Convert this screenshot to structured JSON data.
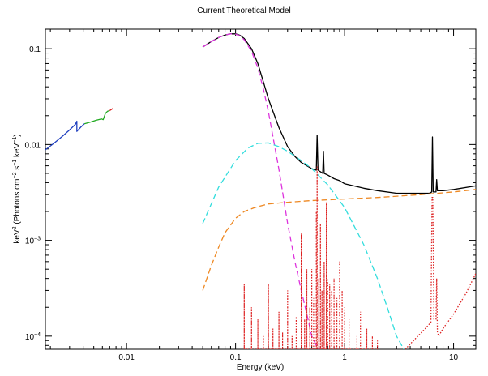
{
  "chart_data": {
    "type": "line",
    "title": "Current Theoretical Model",
    "xlabel": "Energy (keV)",
    "ylabel_parts": {
      "a": "keV",
      "sup1": "2",
      "b": " (Photons cm",
      "sup2": "−2",
      "c": " s",
      "sup3": "−1",
      "d": " keV",
      "sup4": "−1",
      "e": ")"
    },
    "x_scale": "log",
    "y_scale": "log",
    "xlim": [
      0.0018,
      16
    ],
    "ylim": [
      7.3e-05,
      0.16
    ],
    "x_ticks": [
      {
        "value": 0.01,
        "label": "0.01"
      },
      {
        "value": 0.1,
        "label": "0.1"
      },
      {
        "value": 1,
        "label": "1"
      },
      {
        "value": 10,
        "label": "10"
      }
    ],
    "y_ticks": [
      {
        "value": 0.0001,
        "base": "10",
        "exp": "−4"
      },
      {
        "value": 0.001,
        "base": "10",
        "exp": "−3"
      },
      {
        "value": 0.01,
        "base": "0.01",
        "exp": ""
      },
      {
        "value": 0.1,
        "base": "0.1",
        "exp": ""
      }
    ],
    "grid": false,
    "legend": "none",
    "series": [
      {
        "style": "solid",
        "color": "#1f3fbf",
        "x": [
          0.0018,
          0.0022,
          0.0026,
          0.003,
          0.0034,
          0.0035,
          0.0035,
          0.0038,
          0.0041
        ],
        "y": [
          0.0088,
          0.0105,
          0.0123,
          0.0142,
          0.0163,
          0.0175,
          0.0137,
          0.0152,
          0.0165
        ]
      },
      {
        "style": "solid",
        "color": "#22aa22",
        "x": [
          0.0041,
          0.0047,
          0.0053,
          0.0059,
          0.0061,
          0.0064,
          0.0067,
          0.007
        ],
        "y": [
          0.0165,
          0.0172,
          0.018,
          0.0185,
          0.0182,
          0.0212,
          0.0223,
          0.0226
        ]
      },
      {
        "style": "solid",
        "color": "#dd2222",
        "x": [
          0.007,
          0.0075
        ],
        "y": [
          0.0226,
          0.0238
        ]
      },
      {
        "style": "solid",
        "color": "#000000",
        "x": [
          0.05,
          0.06,
          0.07,
          0.08,
          0.09,
          0.1,
          0.11,
          0.12,
          0.14,
          0.16,
          0.18,
          0.2,
          0.25,
          0.3,
          0.35,
          0.4,
          0.5,
          0.55,
          0.56,
          0.57,
          0.6,
          0.63,
          0.64,
          0.65,
          0.7,
          0.8,
          0.9,
          1.0,
          1.5,
          2.0,
          3.0,
          4.0,
          5.0,
          6.0,
          6.3,
          6.4,
          6.5,
          6.6,
          6.9,
          7.0,
          7.1,
          8.0,
          10,
          16
        ],
        "y": [
          0.104,
          0.119,
          0.131,
          0.139,
          0.143,
          0.143,
          0.138,
          0.128,
          0.1,
          0.07,
          0.045,
          0.03,
          0.015,
          0.0095,
          0.0075,
          0.0065,
          0.0056,
          0.0054,
          0.0125,
          0.0054,
          0.0052,
          0.005,
          0.0085,
          0.005,
          0.0048,
          0.0044,
          0.0042,
          0.0039,
          0.0035,
          0.0033,
          0.0031,
          0.0031,
          0.0031,
          0.0031,
          0.0032,
          0.012,
          0.0032,
          0.0032,
          0.0032,
          0.0043,
          0.0033,
          0.0033,
          0.0034,
          0.0037
        ]
      },
      {
        "style": "dashed",
        "color": "#dd33dd",
        "x": [
          0.05,
          0.06,
          0.07,
          0.08,
          0.09,
          0.1,
          0.11,
          0.12,
          0.14,
          0.16,
          0.18,
          0.2,
          0.25,
          0.3,
          0.35,
          0.4,
          0.45,
          0.5,
          0.55,
          0.6
        ],
        "y": [
          0.104,
          0.119,
          0.131,
          0.139,
          0.143,
          0.142,
          0.136,
          0.124,
          0.094,
          0.063,
          0.038,
          0.022,
          0.0055,
          0.0015,
          0.0006,
          0.0003,
          0.00017,
          0.0001,
          8e-05,
          7.3e-05
        ]
      },
      {
        "style": "dashed",
        "color": "#33dddd",
        "x": [
          0.05,
          0.07,
          0.1,
          0.13,
          0.16,
          0.2,
          0.25,
          0.3,
          0.4,
          0.5,
          0.7,
          1.0,
          1.5,
          2.0,
          2.5,
          3.0,
          3.5
        ],
        "y": [
          0.0015,
          0.0036,
          0.0068,
          0.0092,
          0.0103,
          0.0104,
          0.0095,
          0.0085,
          0.0068,
          0.0056,
          0.0038,
          0.0022,
          0.0009,
          0.0004,
          0.00019,
          0.0001,
          7.3e-05
        ]
      },
      {
        "style": "dashed",
        "color": "#ee8822",
        "x": [
          0.05,
          0.06,
          0.07,
          0.08,
          0.1,
          0.12,
          0.15,
          0.2,
          0.3,
          0.5,
          1.0,
          2.0,
          5.0,
          10,
          16
        ],
        "y": [
          0.0003,
          0.00055,
          0.00085,
          0.0012,
          0.0017,
          0.002,
          0.0022,
          0.0024,
          0.0025,
          0.0026,
          0.0027,
          0.0028,
          0.003,
          0.0032,
          0.0034
        ]
      },
      {
        "style": "dotted",
        "color": "#dd2222",
        "x": [
          3.6,
          4.5,
          5.5,
          6.2,
          6.35,
          6.45,
          6.6,
          6.9,
          7.0,
          7.1,
          7.3,
          8.0,
          10,
          13,
          16
        ],
        "y": [
          7.3e-05,
          9.5e-05,
          0.00012,
          0.00014,
          0.0028,
          0.0028,
          0.00015,
          0.00015,
          0.0004,
          0.00011,
          0.0001,
          0.00012,
          0.00017,
          0.00028,
          0.00045
        ]
      }
    ],
    "line_lists": [
      {
        "style": "dotted",
        "color": "#dd2222",
        "base": 7.3e-05,
        "x": [
          0.12,
          0.14,
          0.16,
          0.18,
          0.2,
          0.22,
          0.25,
          0.27,
          0.3,
          0.33,
          0.36,
          0.4,
          0.43,
          0.45,
          0.48,
          0.5,
          0.52,
          0.55,
          0.56,
          0.58,
          0.6,
          0.62,
          0.65,
          0.68,
          0.7,
          0.73,
          0.76,
          0.8,
          0.85,
          0.9,
          0.95,
          1.0,
          1.1,
          1.3,
          1.4,
          1.6,
          1.8,
          2.0
        ],
        "y": [
          0.00035,
          0.0002,
          0.00015,
          0.0001,
          0.00035,
          0.00012,
          0.00018,
          0.00011,
          0.0003,
          0.0001,
          0.00016,
          0.0012,
          0.00015,
          0.0005,
          0.0002,
          0.0005,
          0.00025,
          0.002,
          0.0059,
          0.0004,
          0.0015,
          0.0003,
          0.0006,
          0.0025,
          0.0004,
          0.00035,
          0.0003,
          0.0004,
          0.00025,
          0.0006,
          0.0003,
          0.0002,
          0.00015,
          0.0001,
          0.00018,
          0.00012,
          0.0001,
          9e-05
        ]
      }
    ]
  }
}
